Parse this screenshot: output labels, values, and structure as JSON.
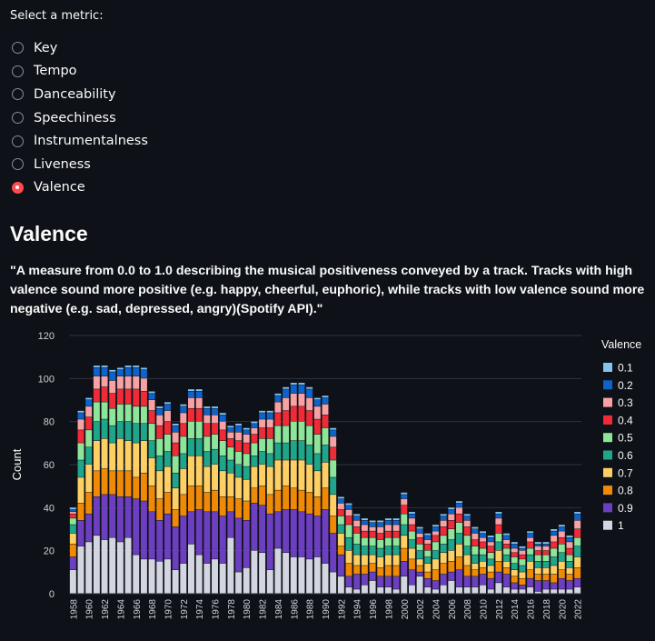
{
  "prompt": "Select a metric:",
  "options": [
    "Key",
    "Tempo",
    "Danceability",
    "Speechiness",
    "Instrumentalness",
    "Liveness",
    "Valence"
  ],
  "selected": 6,
  "heading": "Valence",
  "description": "\"A measure from 0.0 to 1.0 describing the musical positiveness conveyed by a track. Tracks with high valence sound more positive (e.g. happy, cheerful, euphoric), while tracks with low valence sound more negative (e.g. sad, depressed, angry)(Spotify API).\"",
  "chart_data": {
    "type": "bar",
    "stacked": true,
    "title": "",
    "xlabel": "",
    "ylabel": "Count",
    "ylim": [
      0,
      120
    ],
    "yticks": [
      0,
      20,
      40,
      60,
      80,
      100,
      120
    ],
    "legend_title": "Valence",
    "legend_position": "right",
    "grid": true,
    "colors": {
      "1": "#d3d6e0",
      "0.9": "#6c3fc0",
      "0.8": "#f08a05",
      "0.7": "#fed064",
      "0.6": "#1fa68a",
      "0.5": "#8de59a",
      "0.4": "#ee2b36",
      "0.3": "#f7a1a4",
      "0.2": "#0c63c9",
      "0.1": "#85c2ef"
    },
    "legend_order": [
      "0.1",
      "0.2",
      "0.3",
      "0.4",
      "0.5",
      "0.6",
      "0.7",
      "0.8",
      "0.9",
      "1"
    ],
    "years": [
      1958,
      1959,
      1960,
      1961,
      1962,
      1963,
      1964,
      1965,
      1966,
      1967,
      1968,
      1969,
      1970,
      1971,
      1972,
      1973,
      1974,
      1975,
      1976,
      1977,
      1978,
      1979,
      1980,
      1981,
      1982,
      1983,
      1984,
      1985,
      1986,
      1987,
      1988,
      1989,
      1990,
      1991,
      1992,
      1993,
      1994,
      1995,
      1996,
      1997,
      1998,
      1999,
      2000,
      2001,
      2002,
      2003,
      2004,
      2005,
      2006,
      2007,
      2008,
      2009,
      2010,
      2011,
      2012,
      2013,
      2014,
      2015,
      2016,
      2017,
      2018,
      2019,
      2020,
      2021,
      2022
    ],
    "tick_years": [
      1958,
      1960,
      1962,
      1964,
      1966,
      1968,
      1970,
      1972,
      1974,
      1976,
      1978,
      1980,
      1982,
      1984,
      1986,
      1988,
      1990,
      1992,
      1994,
      1996,
      1998,
      2000,
      2002,
      2004,
      2006,
      2008,
      2010,
      2012,
      2014,
      2016,
      2018,
      2020,
      2022
    ],
    "series": [
      {
        "name": "1",
        "values": [
          11,
          22,
          24,
          27,
          25,
          26,
          24,
          26,
          18,
          16,
          16,
          15,
          16,
          11,
          14,
          23,
          18,
          14,
          16,
          14,
          26,
          10,
          12,
          20,
          19,
          11,
          21,
          19,
          17,
          17,
          16,
          17,
          14,
          10,
          8,
          3,
          2,
          4,
          6,
          3,
          3,
          2,
          8,
          4,
          8,
          3,
          2,
          4,
          6,
          3,
          3,
          3,
          4,
          2,
          5,
          3,
          2,
          2,
          3,
          1,
          2,
          2,
          2,
          2,
          3
        ]
      },
      {
        "name": "0.9",
        "values": [
          6,
          12,
          13,
          18,
          21,
          20,
          21,
          19,
          26,
          27,
          22,
          19,
          21,
          20,
          22,
          15,
          21,
          24,
          22,
          22,
          12,
          25,
          22,
          22,
          22,
          26,
          17,
          20,
          22,
          21,
          21,
          19,
          25,
          18,
          10,
          5,
          7,
          5,
          4,
          5,
          5,
          6,
          7,
          7,
          2,
          4,
          4,
          5,
          4,
          8,
          5,
          5,
          5,
          5,
          5,
          6,
          3,
          2,
          4,
          5,
          4,
          3,
          5,
          4,
          4
        ]
      },
      {
        "name": "0.8",
        "values": [
          6,
          8,
          10,
          12,
          12,
          11,
          12,
          12,
          10,
          13,
          12,
          10,
          10,
          8,
          10,
          12,
          11,
          9,
          10,
          9,
          7,
          9,
          9,
          7,
          9,
          9,
          10,
          11,
          10,
          10,
          10,
          9,
          10,
          8,
          4,
          6,
          4,
          4,
          4,
          4,
          5,
          5,
          6,
          5,
          3,
          3,
          5,
          5,
          5,
          6,
          5,
          3,
          3,
          3,
          5,
          3,
          3,
          3,
          4,
          3,
          3,
          4,
          4,
          3,
          5
        ]
      },
      {
        "name": "0.7",
        "values": [
          5,
          12,
          13,
          14,
          14,
          13,
          15,
          14,
          16,
          15,
          13,
          13,
          12,
          10,
          12,
          14,
          14,
          12,
          12,
          12,
          11,
          10,
          10,
          10,
          10,
          13,
          14,
          12,
          13,
          14,
          13,
          12,
          12,
          10,
          6,
          6,
          5,
          5,
          4,
          5,
          5,
          5,
          6,
          5,
          3,
          4,
          5,
          5,
          5,
          6,
          5,
          3,
          3,
          3,
          5,
          3,
          3,
          3,
          4,
          3,
          3,
          4,
          4,
          3,
          5
        ]
      },
      {
        "name": "0.6",
        "values": [
          4,
          8,
          8,
          9,
          9,
          8,
          8,
          9,
          9,
          8,
          8,
          7,
          7,
          7,
          7,
          8,
          8,
          7,
          7,
          7,
          6,
          6,
          6,
          5,
          6,
          6,
          8,
          8,
          9,
          9,
          9,
          8,
          8,
          8,
          4,
          6,
          5,
          4,
          4,
          4,
          4,
          4,
          5,
          4,
          4,
          3,
          4,
          4,
          5,
          5,
          4,
          4,
          3,
          3,
          4,
          3,
          3,
          3,
          3,
          3,
          3,
          4,
          4,
          3,
          5
        ]
      },
      {
        "name": "0.5",
        "values": [
          3,
          8,
          8,
          9,
          8,
          8,
          8,
          8,
          8,
          8,
          8,
          8,
          8,
          8,
          8,
          8,
          8,
          7,
          7,
          7,
          6,
          6,
          6,
          6,
          6,
          7,
          8,
          8,
          9,
          9,
          9,
          9,
          8,
          8,
          4,
          6,
          5,
          4,
          4,
          4,
          4,
          4,
          5,
          4,
          3,
          3,
          4,
          4,
          5,
          5,
          5,
          4,
          3,
          3,
          4,
          3,
          3,
          3,
          3,
          3,
          3,
          4,
          4,
          3,
          4
        ]
      },
      {
        "name": "0.4",
        "values": [
          2,
          6,
          6,
          6,
          7,
          7,
          7,
          7,
          8,
          7,
          6,
          6,
          6,
          6,
          6,
          6,
          6,
          6,
          5,
          5,
          4,
          5,
          5,
          4,
          5,
          5,
          6,
          7,
          7,
          7,
          7,
          7,
          6,
          6,
          3,
          4,
          3,
          3,
          3,
          3,
          3,
          3,
          4,
          3,
          3,
          3,
          3,
          4,
          4,
          4,
          4,
          3,
          3,
          3,
          4,
          2,
          2,
          2,
          3,
          2,
          2,
          3,
          3,
          3,
          4
        ]
      },
      {
        "name": "0.3",
        "values": [
          1,
          5,
          5,
          6,
          5,
          6,
          6,
          6,
          6,
          6,
          5,
          5,
          5,
          5,
          5,
          5,
          5,
          4,
          4,
          4,
          3,
          4,
          4,
          3,
          4,
          4,
          5,
          6,
          6,
          6,
          6,
          6,
          5,
          5,
          3,
          3,
          3,
          3,
          2,
          3,
          3,
          3,
          3,
          3,
          2,
          2,
          2,
          3,
          3,
          3,
          3,
          3,
          2,
          2,
          3,
          2,
          2,
          2,
          2,
          2,
          2,
          3,
          3,
          3,
          4
        ]
      },
      {
        "name": "0.2",
        "values": [
          1,
          3,
          3,
          4,
          4,
          4,
          3,
          4,
          4,
          4,
          3,
          3,
          3,
          3,
          3,
          3,
          3,
          3,
          3,
          3,
          2,
          3,
          2,
          2,
          3,
          3,
          3,
          4,
          4,
          4,
          4,
          3,
          3,
          3,
          2,
          2,
          2,
          2,
          2,
          2,
          2,
          2,
          2,
          2,
          2,
          2,
          2,
          2,
          2,
          2,
          2,
          2,
          2,
          2,
          2,
          2,
          2,
          1,
          2,
          1,
          1,
          2,
          2,
          2,
          3
        ]
      },
      {
        "name": "0.1",
        "values": [
          1,
          1,
          1,
          1,
          1,
          1,
          1,
          1,
          1,
          1,
          1,
          1,
          1,
          1,
          1,
          1,
          1,
          1,
          1,
          1,
          1,
          1,
          1,
          1,
          1,
          1,
          1,
          1,
          1,
          1,
          1,
          1,
          1,
          1,
          1,
          1,
          1,
          1,
          1,
          1,
          1,
          1,
          1,
          1,
          1,
          1,
          1,
          1,
          1,
          1,
          1,
          1,
          1,
          1,
          1,
          1,
          1,
          1,
          1,
          1,
          1,
          1,
          1,
          1,
          1
        ]
      }
    ]
  }
}
